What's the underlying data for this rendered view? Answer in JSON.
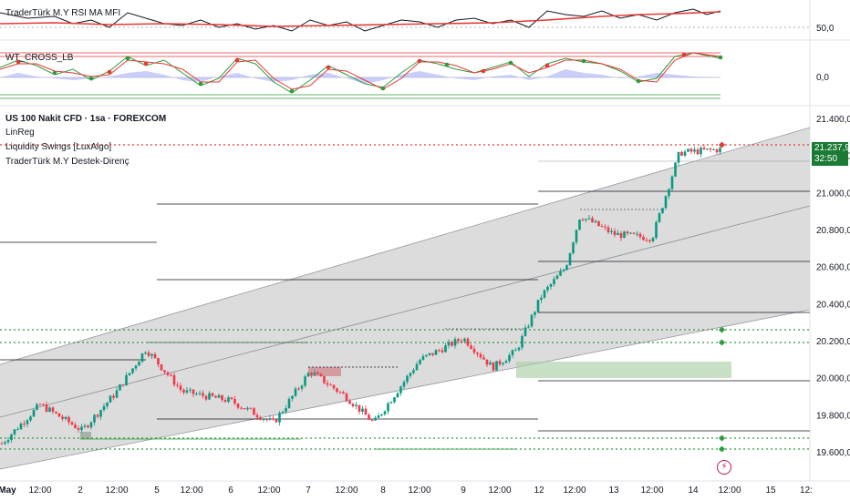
{
  "panes": {
    "rsi": {
      "title": "TraderTürk M.Y RSI MA MFI",
      "level_label": "50,0"
    },
    "wt": {
      "title": "WT_CROSS_LB",
      "level_label": "0,0"
    }
  },
  "main": {
    "symbol_title": "US 100 Nakit CFD · 1sa · FOREXCOM",
    "indicators": [
      "LinReg",
      "Liquidity Swings [LuxAlgo]",
      "TraderTürk M.Y Destek-Direnç"
    ],
    "last_price": "21.237,9",
    "countdown": "32:50"
  },
  "price_axis": [
    "21.400,0",
    "21.200,0",
    "21.000,0",
    "20.800,0",
    "20.600,0",
    "20.400,0",
    "20.200,0",
    "20.000,0",
    "19.800,0",
    "19.600,0"
  ],
  "time_axis": [
    "May",
    "12:00",
    "2",
    "12:00",
    "5",
    "12:00",
    "6",
    "12:00",
    "7",
    "12:00",
    "8",
    "12:00",
    "9",
    "12:00",
    "12",
    "12:00",
    "13",
    "12:00",
    "14",
    "12:00",
    "15",
    "12:"
  ],
  "icons": {
    "lightning": "lightning-icon"
  },
  "colors": {
    "up": "#089981",
    "down": "#f23645",
    "rsi_ma": "#e53935",
    "channel_fill": "#d8d8d8",
    "level_green": "#2e9c3c",
    "level_red": "#e53935"
  },
  "chart_data": {
    "type": "candlestick",
    "ylim": [
      19500,
      21450
    ],
    "price_ticks": [
      21400,
      21200,
      21000,
      20800,
      20600,
      20400,
      20200,
      20000,
      19800,
      19600
    ],
    "key_closes": [
      [
        "May 1",
        19650
      ],
      [
        "May 1 12:00",
        19860
      ],
      [
        "May 2",
        19720
      ],
      [
        "May 2 12:00",
        19930
      ],
      [
        "May 5",
        20160
      ],
      [
        "May 5 12:00",
        19930
      ],
      [
        "May 6",
        19880
      ],
      [
        "May 6 12:00",
        19760
      ],
      [
        "May 7",
        20040
      ],
      [
        "May 7 12:00",
        19900
      ],
      [
        "May 8",
        19760
      ],
      [
        "May 8 12:00",
        20100
      ],
      [
        "May 9",
        20220
      ],
      [
        "May 9 12:00",
        20060
      ],
      [
        "May 9 18:00",
        20150
      ],
      [
        "May 12",
        20450
      ],
      [
        "May 12 12:00",
        20600
      ],
      [
        "May 12 15:00",
        20880
      ],
      [
        "May 13",
        20780
      ],
      [
        "May 13 12:00",
        20760
      ],
      [
        "May 14",
        21220
      ],
      [
        "May 14 12:00",
        21237.9
      ]
    ],
    "last_price": 21237.9,
    "resistance_levels": [
      21245,
      21020,
      20880,
      20640,
      20360,
      20000,
      19700
    ],
    "support_dotted_levels": [
      21245,
      20245,
      20180,
      19650,
      19600
    ]
  }
}
